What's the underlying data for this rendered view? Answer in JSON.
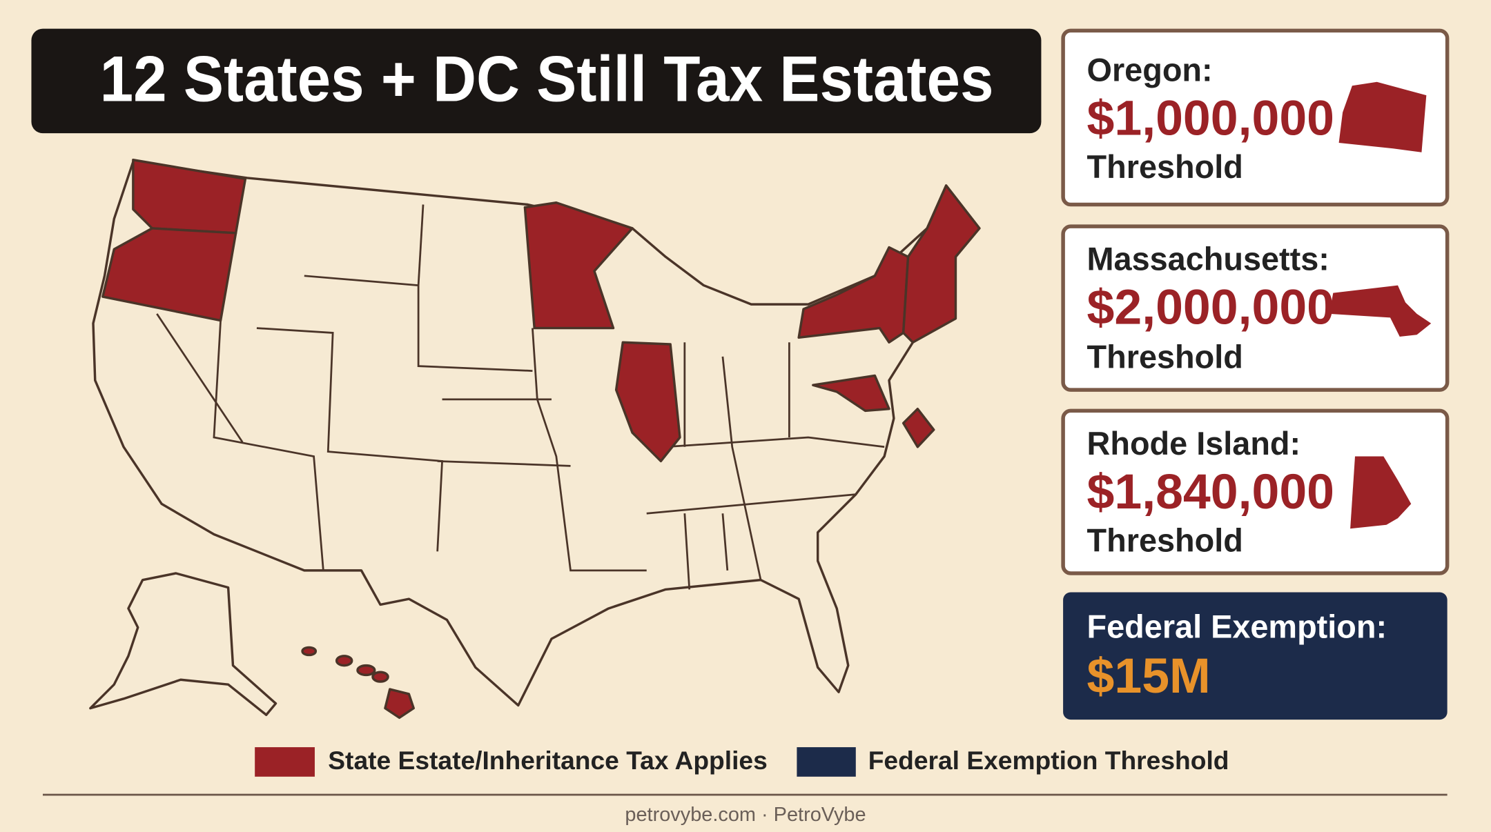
{
  "title": "12 States + DC Still Tax Estates",
  "cards": [
    {
      "state": "Oregon:",
      "amount": "$1,000,000",
      "note": "Threshold"
    },
    {
      "state": "Massachusetts:",
      "amount": "$2,000,000",
      "note": "Threshold"
    },
    {
      "state": "Rhode Island:",
      "amount": "$1,840,000",
      "note": "Threshold"
    }
  ],
  "federal": {
    "label": "Federal Exemption:",
    "amount": "$15M"
  },
  "legend": [
    "State Estate/Inheritance Tax Applies",
    "Federal Exemption Threshold"
  ],
  "footer": "petrovybe.com · PetroVybe"
}
